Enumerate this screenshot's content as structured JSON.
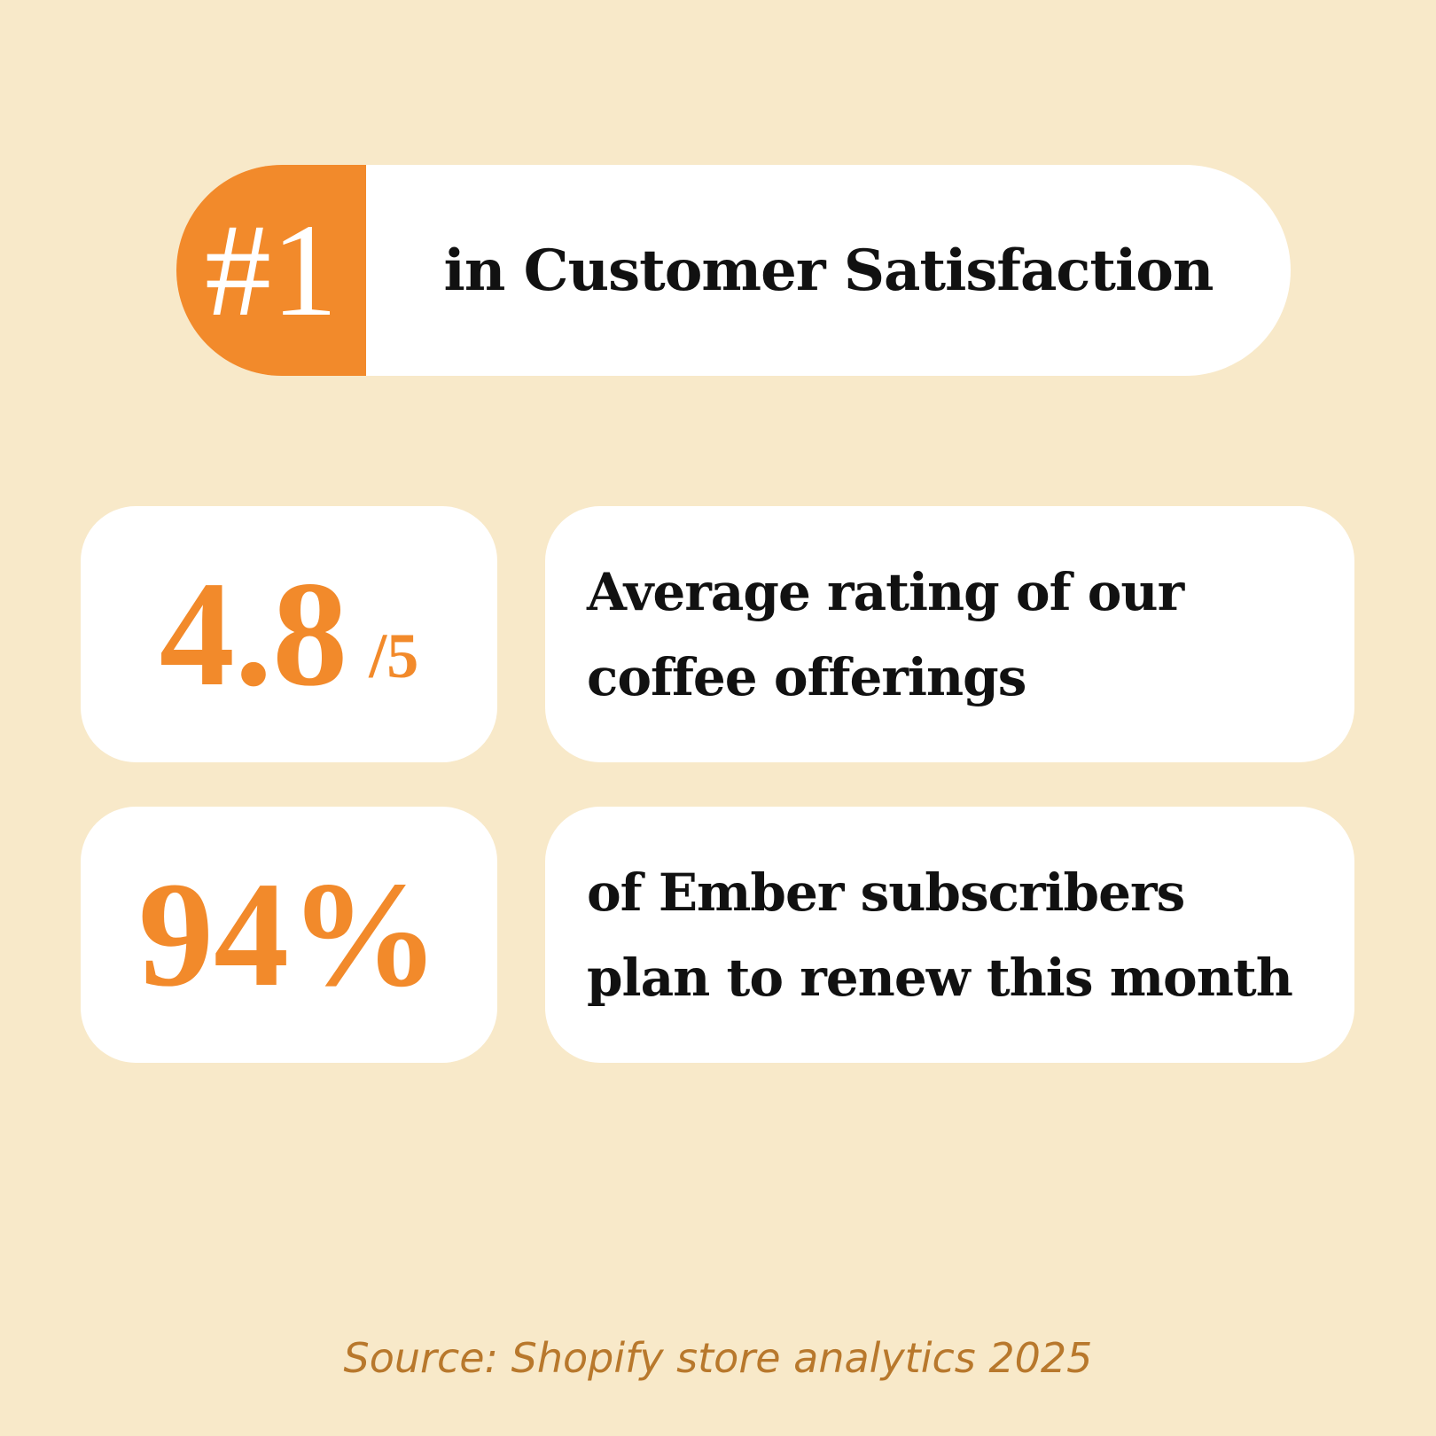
{
  "badge": {
    "rank": "#1",
    "text": "in Customer Satisfaction"
  },
  "stats": [
    {
      "value": "4.8",
      "suffix": "/5",
      "lines": [
        "Average rating of our",
        "coffee offerings"
      ]
    },
    {
      "value": "94%",
      "lines": [
        "of Ember subscribers",
        "plan to renew this month"
      ]
    }
  ],
  "source": "Source: Shopify store analytics 2025"
}
